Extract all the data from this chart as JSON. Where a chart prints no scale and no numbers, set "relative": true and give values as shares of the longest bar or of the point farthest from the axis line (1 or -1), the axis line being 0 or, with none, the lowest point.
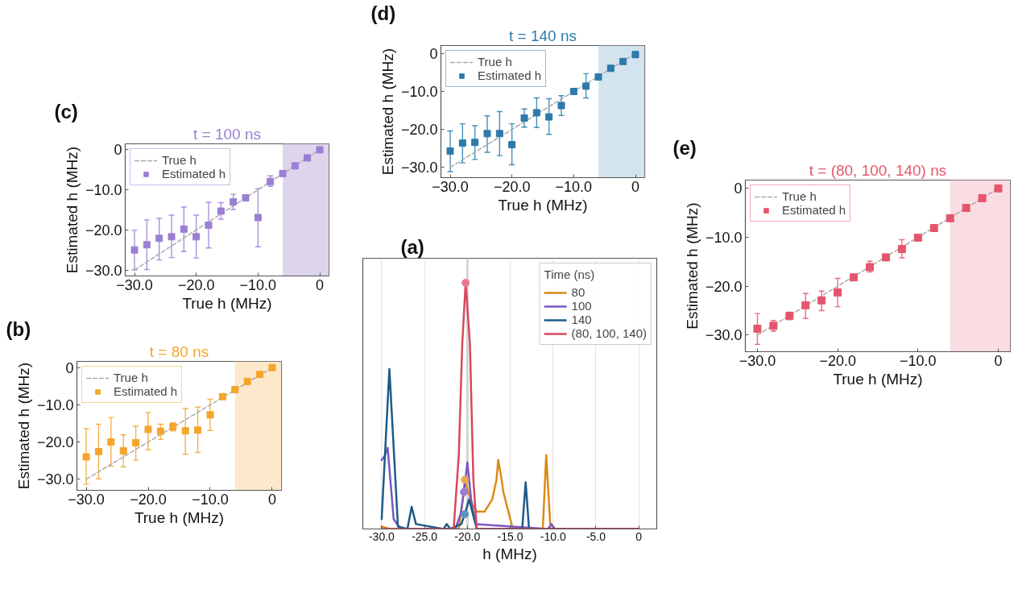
{
  "chart_data": [
    {
      "type": "line",
      "annotations": [
        "(a)"
      ],
      "xlabel": "h (MHz)",
      "legend_title": "Time (ns)",
      "legend": "top right",
      "relative": true,
      "grid": "x",
      "xlim": [
        -32.2,
        2.1
      ],
      "xticks": [
        {
          "value": -30,
          "label": "-30.0"
        },
        {
          "value": -25,
          "label": "-25.0"
        },
        {
          "value": -20,
          "label": "-20.0"
        },
        {
          "value": -15,
          "label": "-15.0"
        },
        {
          "value": -10,
          "label": "-10.0"
        },
        {
          "value": -5,
          "label": "-5.0"
        },
        0
      ],
      "ref_lines": [
        {
          "axis": "x",
          "value": -20,
          "color": "#d4d4d4"
        }
      ],
      "series": [
        {
          "name": "80",
          "color": "#db8b17",
          "x": [
            -30,
            -29,
            -21.0,
            -20.6,
            -20.3,
            -19.9,
            -19.4,
            -18.9,
            -18.0,
            -17.1,
            -16.6,
            -16.4,
            -16.0,
            -15.8,
            -14.7,
            -11.2,
            -10.8,
            -10.3,
            0
          ],
          "values": [
            0.01,
            0,
            0,
            0.1,
            0.2,
            0.15,
            0.1,
            0.07,
            0.07,
            0.12,
            0.2,
            0.28,
            0.2,
            0.15,
            0,
            0,
            0.3,
            0,
            0
          ]
        },
        {
          "name": "100",
          "color": "#7b56c3",
          "x": [
            -30,
            -29.6,
            -29.3,
            -28.6,
            -27.8,
            -21.4,
            -20.8,
            -20.4,
            -20.0,
            -19.5,
            -19.0,
            -10.6,
            -10.2,
            -9.8,
            0
          ],
          "values": [
            0.28,
            0.3,
            0.33,
            0.04,
            0,
            0,
            0.06,
            0.15,
            0.27,
            0.1,
            0.02,
            0,
            0.02,
            0,
            0
          ]
        },
        {
          "name": "140",
          "color": "#1d5b87",
          "x": [
            -30,
            -29.1,
            -28.1,
            -27.0,
            -26.5,
            -26.0,
            -22.8,
            -22.4,
            -22.0,
            -20.7,
            -20.3,
            -19.8,
            -18.9,
            -13.6,
            -13.2,
            -12.8,
            0
          ],
          "values": [
            0.04,
            0.65,
            0.01,
            0,
            0.09,
            0.02,
            0,
            0.02,
            0,
            0.02,
            0.06,
            0.12,
            0,
            0,
            0.19,
            0,
            0
          ]
        },
        {
          "name": "(80, 100, 140)",
          "color": "#d8475e",
          "x": [
            -30,
            -21.6,
            -21.0,
            -20.6,
            -20.2,
            -19.7,
            -19.3,
            -18.9,
            0
          ],
          "values": [
            0,
            0,
            0.3,
            0.75,
            1,
            0.75,
            0.2,
            0,
            0
          ]
        },
        {
          "type": "scatter",
          "marker": "circle",
          "x": [
            -20.3,
            -20.4,
            -20.3,
            -20.2
          ],
          "values": [
            0.2,
            0.15,
            0.06,
            1
          ],
          "colors": [
            "#eba94f",
            "#9b7dd8",
            "#5b93bd",
            "#e67a8c"
          ]
        }
      ]
    },
    {
      "type": "scatter",
      "title": "t = 80 ns",
      "annotations": [
        "(b)"
      ],
      "xlabel": "True h (MHz)",
      "ylabel": "Estimated h (MHz)",
      "legend": "top left",
      "xlim": [
        -31.5,
        1.5
      ],
      "ylim": [
        -33.0,
        1.7
      ],
      "xticks": [
        {
          "value": -30,
          "label": "−30.0"
        },
        {
          "value": -20,
          "label": "−20.0"
        },
        {
          "value": -10,
          "label": "−10.0"
        },
        0
      ],
      "yticks": [
        {
          "value": -30,
          "label": "−30.0"
        },
        {
          "value": -20,
          "label": "−20.0"
        },
        {
          "value": -10,
          "label": "−10.0"
        },
        0
      ],
      "bands": [
        {
          "axis": "x",
          "from": -6,
          "to": 1.5,
          "color": "#fde8cc"
        }
      ],
      "x": [
        -30,
        -28,
        -26,
        -24,
        -22,
        -20,
        -18,
        -16,
        -14,
        -12,
        -10,
        -8,
        -6,
        -4,
        -2,
        0
      ],
      "series": [
        {
          "name": "True h",
          "type": "line",
          "line_style": "dashed",
          "color": "#aaaaaa",
          "x": [
            -30,
            0
          ],
          "values": [
            -30,
            0
          ]
        },
        {
          "name": "Estimated h",
          "marker": "square",
          "color": "#f5a52b",
          "values": [
            -24.0,
            -22.6,
            -20.0,
            -22.4,
            -20.2,
            -16.6,
            -17.1,
            -15.9,
            -17.0,
            -16.8,
            -12.7,
            -7.8,
            -5.9,
            -3.7,
            -1.8,
            0.0
          ],
          "errors": [
            [
              -31.4,
              -16.4
            ],
            [
              -29.9,
              -15.2
            ],
            [
              -26.5,
              -13.4
            ],
            [
              -26.7,
              -18.1
            ],
            [
              -24.9,
              -15.7
            ],
            [
              -22.1,
              -12.1
            ],
            [
              -19.3,
              -15.2
            ],
            [
              -17.0,
              -14.8
            ],
            [
              -23.3,
              -11.0
            ],
            [
              -22.8,
              -10.6
            ],
            [
              -16.9,
              -8.5
            ],
            null,
            null,
            null,
            null,
            null
          ]
        }
      ]
    },
    {
      "type": "scatter",
      "title": "t = 100 ns",
      "annotations": [
        "(c)"
      ],
      "xlabel": "True h (MHz)",
      "ylabel": "Estimated h (MHz)",
      "legend": "top left",
      "xlim": [
        -31.5,
        1.5
      ],
      "ylim": [
        -31.5,
        1.5
      ],
      "xticks": [
        {
          "value": -30,
          "label": "−30.0"
        },
        {
          "value": -20,
          "label": "−20.0"
        },
        {
          "value": -10,
          "label": "−10.0"
        },
        0
      ],
      "yticks": [
        {
          "value": -30,
          "label": "−30.0"
        },
        {
          "value": -20,
          "label": "−20.0"
        },
        {
          "value": -10,
          "label": "−10.0"
        },
        0
      ],
      "bands": [
        {
          "axis": "x",
          "from": -6,
          "to": 1.5,
          "color": "#ded5ec"
        }
      ],
      "x": [
        -30,
        -28,
        -26,
        -24,
        -22,
        -20,
        -18,
        -16,
        -14,
        -12,
        -10,
        -8,
        -6,
        -4,
        -2,
        0
      ],
      "series": [
        {
          "name": "True h",
          "type": "line",
          "line_style": "dashed",
          "color": "#aaaaaa",
          "x": [
            -30,
            0
          ],
          "values": [
            -30,
            0
          ]
        },
        {
          "name": "Estimated h",
          "marker": "square",
          "color": "#9a7fd3",
          "values": [
            -25.0,
            -23.7,
            -22.1,
            -21.7,
            -19.8,
            -21.7,
            -18.8,
            -15.3,
            -13.0,
            -12.0,
            -16.9,
            -7.9,
            -5.9,
            -4.0,
            -2.0,
            0.0
          ],
          "errors": [
            [
              -30.0,
              -20.1
            ],
            [
              -29.9,
              -17.5
            ],
            [
              -27.5,
              -17.1
            ],
            [
              -26.9,
              -16.3
            ],
            [
              -25.4,
              -14.3
            ],
            [
              -27.0,
              -16.3
            ],
            [
              -24.5,
              -13.1
            ],
            [
              -17.3,
              -13.2
            ],
            [
              -14.9,
              -11.1
            ],
            null,
            [
              -24.2,
              -9.7
            ],
            [
              -9.1,
              -6.5
            ],
            null,
            null,
            null,
            null
          ]
        }
      ]
    },
    {
      "type": "scatter",
      "title": "t = 140 ns",
      "annotations": [
        "(d)"
      ],
      "xlabel": "True h (MHz)",
      "ylabel": "Estimated h (MHz)",
      "legend": "top left",
      "xlim": [
        -31.5,
        1.5
      ],
      "ylim": [
        -32.7,
        2.1
      ],
      "xticks": [
        {
          "value": -30,
          "label": "−30.0"
        },
        {
          "value": -20,
          "label": "−20.0"
        },
        {
          "value": -10,
          "label": "−10.0"
        },
        0
      ],
      "yticks": [
        {
          "value": -30,
          "label": "−30.0"
        },
        {
          "value": -20,
          "label": "−20.0"
        },
        {
          "value": -10,
          "label": "−10.0"
        },
        0
      ],
      "bands": [
        {
          "axis": "x",
          "from": -6,
          "to": 1.5,
          "color": "#d4e4ef"
        }
      ],
      "x": [
        -30,
        -28,
        -26,
        -24,
        -22,
        -20,
        -18,
        -16,
        -14,
        -12,
        -10,
        -8,
        -6,
        -4,
        -2,
        0
      ],
      "series": [
        {
          "name": "True h",
          "type": "line",
          "line_style": "dashed",
          "color": "#aaaaaa",
          "x": [
            -30,
            0
          ],
          "values": [
            -30,
            0
          ]
        },
        {
          "name": "Estimated h",
          "marker": "square",
          "color": "#2d7aab",
          "values": [
            -25.7,
            -23.6,
            -23.4,
            -21.1,
            -21.1,
            -24.0,
            -17.0,
            -15.6,
            -16.7,
            -13.7,
            -10.0,
            -8.6,
            -6.2,
            -3.9,
            -2.1,
            -0.3
          ],
          "errors": [
            [
              -31.1,
              -20.4
            ],
            [
              -28.8,
              -18.5
            ],
            [
              -27.9,
              -19.0
            ],
            [
              -26.0,
              -16.4
            ],
            [
              -26.9,
              -15.3
            ],
            [
              -29.3,
              -18.5
            ],
            [
              -19.4,
              -14.6
            ],
            [
              -19.5,
              -11.7
            ],
            [
              -21.3,
              -11.9
            ],
            [
              -16.3,
              -11.1
            ],
            null,
            [
              -11.7,
              -5.3
            ],
            null,
            null,
            null,
            [
              -1.0,
              0.5
            ]
          ]
        }
      ]
    },
    {
      "type": "scatter",
      "title": "t = (80, 100, 140) ns",
      "annotations": [
        "(e)"
      ],
      "xlabel": "True h (MHz)",
      "ylabel": "Estimated h (MHz)",
      "legend": "top left",
      "xlim": [
        -31.5,
        1.5
      ],
      "ylim": [
        -33.4,
        1.7
      ],
      "xticks": [
        {
          "value": -30,
          "label": "−30.0"
        },
        {
          "value": -20,
          "label": "−20.0"
        },
        {
          "value": -10,
          "label": "−10.0"
        },
        0
      ],
      "yticks": [
        {
          "value": -30,
          "label": "−30.0"
        },
        {
          "value": -20,
          "label": "−20.0"
        },
        {
          "value": -10,
          "label": "−10.0"
        },
        0
      ],
      "bands": [
        {
          "axis": "x",
          "from": -6,
          "to": 1.5,
          "color": "#fadde2"
        }
      ],
      "x": [
        -30,
        -28,
        -26,
        -24,
        -22,
        -20,
        -18,
        -16,
        -14,
        -12,
        -10,
        -8,
        -6,
        -4,
        -2,
        0
      ],
      "series": [
        {
          "name": "True h",
          "type": "line",
          "line_style": "dashed",
          "color": "#aaaaaa",
          "x": [
            -30,
            0
          ],
          "values": [
            -30,
            0
          ]
        },
        {
          "name": "Estimated h",
          "marker": "square",
          "color": "#e5566c",
          "values": [
            -28.7,
            -28.1,
            -26.1,
            -23.9,
            -22.9,
            -21.3,
            -18.2,
            -16.1,
            -14.1,
            -12.4,
            -10.1,
            -8.1,
            -6.1,
            -4.0,
            -2.0,
            0.0
          ],
          "errors": [
            [
              -31.9,
              -25.6
            ],
            [
              -29.2,
              -27.0
            ],
            [
              -26.8,
              -25.3
            ],
            [
              -26.6,
              -21.5
            ],
            [
              -25.0,
              -21.0
            ],
            [
              -24.2,
              -18.4
            ],
            null,
            [
              -17.1,
              -14.9
            ],
            null,
            [
              -14.2,
              -10.5
            ],
            null,
            null,
            null,
            null,
            null,
            null
          ]
        }
      ]
    }
  ]
}
